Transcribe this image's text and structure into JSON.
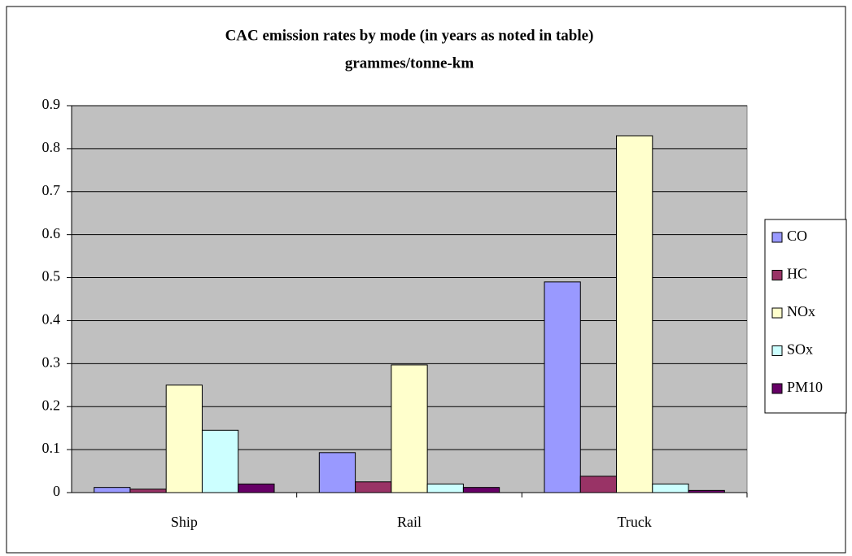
{
  "chart_data": {
    "type": "bar",
    "title": "CAC emission rates by mode (in years as noted in table)",
    "subtitle": "grammes/tonne-km",
    "categories": [
      "Ship",
      "Rail",
      "Truck"
    ],
    "series": [
      {
        "name": "CO",
        "color": "#9999ff",
        "values": [
          0.012,
          0.093,
          0.49
        ]
      },
      {
        "name": "HC",
        "color": "#993366",
        "values": [
          0.008,
          0.025,
          0.038
        ]
      },
      {
        "name": "NOx",
        "color": "#ffffcc",
        "values": [
          0.25,
          0.297,
          0.83
        ]
      },
      {
        "name": "SOx",
        "color": "#ccffff",
        "values": [
          0.145,
          0.02,
          0.02
        ]
      },
      {
        "name": "PM10",
        "color": "#660066",
        "values": [
          0.02,
          0.012,
          0.005
        ]
      }
    ],
    "ylim": [
      0,
      0.9
    ],
    "yticks": [
      0,
      0.1,
      0.2,
      0.3,
      0.4,
      0.5,
      0.6,
      0.7,
      0.8,
      0.9
    ],
    "grid": true,
    "legend": "right"
  }
}
